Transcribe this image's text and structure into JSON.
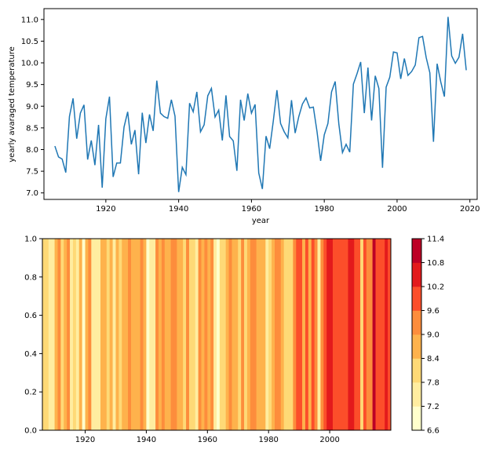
{
  "chart_data": [
    {
      "type": "line",
      "xlabel": "year",
      "ylabel": "yearly avaraged temperature",
      "xlim": [
        1903,
        2022
      ],
      "ylim": [
        6.85,
        11.25
      ],
      "xticks": [
        1920,
        1940,
        1960,
        1980,
        2000,
        2020
      ],
      "yticks": [
        7.0,
        7.5,
        8.0,
        8.5,
        9.0,
        9.5,
        10.0,
        10.5,
        11.0
      ],
      "color": "#1f77b4",
      "series": [
        {
          "x": [
            1906,
            1907,
            1908,
            1909,
            1910,
            1911,
            1912,
            1913,
            1914,
            1915,
            1916,
            1917,
            1918,
            1919,
            1920,
            1921,
            1922,
            1923,
            1924,
            1925,
            1926,
            1927,
            1928,
            1929,
            1930,
            1931,
            1932,
            1933,
            1934,
            1935,
            1936,
            1937,
            1938,
            1939,
            1940,
            1941,
            1942,
            1943,
            1944,
            1945,
            1946,
            1947,
            1948,
            1949,
            1950,
            1951,
            1952,
            1953,
            1954,
            1955,
            1956,
            1957,
            1958,
            1959,
            1960,
            1961,
            1962,
            1963,
            1964,
            1965,
            1966,
            1967,
            1968,
            1969,
            1970,
            1971,
            1972,
            1973,
            1974,
            1975,
            1976,
            1977,
            1978,
            1979,
            1980,
            1981,
            1982,
            1983,
            1984,
            1985,
            1986,
            1987,
            1988,
            1989,
            1990,
            1991,
            1992,
            1993,
            1994,
            1995,
            1996,
            1997,
            1998,
            1999,
            2000,
            2001,
            2002,
            2003,
            2004,
            2005,
            2006,
            2007,
            2008,
            2009,
            2010,
            2011,
            2012,
            2013,
            2014,
            2015,
            2016,
            2017,
            2018,
            2019
          ],
          "values": [
            8.08,
            7.83,
            7.78,
            7.47,
            8.76,
            9.18,
            8.25,
            8.84,
            9.03,
            7.77,
            8.21,
            7.64,
            8.57,
            7.12,
            8.71,
            9.22,
            7.37,
            7.69,
            7.69,
            8.52,
            8.87,
            8.12,
            8.45,
            7.43,
            8.85,
            8.15,
            8.81,
            8.43,
            9.59,
            8.84,
            8.76,
            8.72,
            9.15,
            8.77,
            7.02,
            7.59,
            7.42,
            9.07,
            8.87,
            9.33,
            8.41,
            8.57,
            9.24,
            9.41,
            8.75,
            8.91,
            8.21,
            9.25,
            8.3,
            8.2,
            7.51,
            9.15,
            8.67,
            9.29,
            8.84,
            9.04,
            7.46,
            7.09,
            8.31,
            8.02,
            8.66,
            9.37,
            8.6,
            8.41,
            8.27,
            9.14,
            8.38,
            8.76,
            9.05,
            9.19,
            8.96,
            8.98,
            8.42,
            7.74,
            8.34,
            8.6,
            9.33,
            9.57,
            8.59,
            7.93,
            8.12,
            7.94,
            9.51,
            9.75,
            10.02,
            8.84,
            9.89,
            8.67,
            9.7,
            9.41,
            7.58,
            9.44,
            9.67,
            10.25,
            10.23,
            9.63,
            10.1,
            9.71,
            9.8,
            9.95,
            10.58,
            10.61,
            10.12,
            9.77,
            8.18,
            9.98,
            9.56,
            9.22,
            11.06,
            10.16,
            9.99,
            10.13,
            10.67,
            9.83
          ]
        }
      ]
    },
    {
      "type": "heatmap",
      "colormap": "YlOrRd",
      "xlim": [
        1906,
        2020
      ],
      "ylim": [
        0.0,
        1.0
      ],
      "xticks": [
        1920,
        1940,
        1960,
        1980,
        2000
      ],
      "yticks": [
        0.0,
        0.2,
        0.4,
        0.6,
        0.8,
        1.0
      ],
      "colorbar_ticks": [
        6.6,
        7.2,
        7.8,
        8.4,
        9.0,
        9.6,
        10.2,
        10.8,
        11.4
      ],
      "colorbar_colors": [
        "#ffffcc",
        "#ffeda0",
        "#fed976",
        "#feb24c",
        "#fd8d3c",
        "#fc4e2a",
        "#e31a1c",
        "#bd0026"
      ],
      "note_values": "same yearly series as the line chart above"
    }
  ]
}
